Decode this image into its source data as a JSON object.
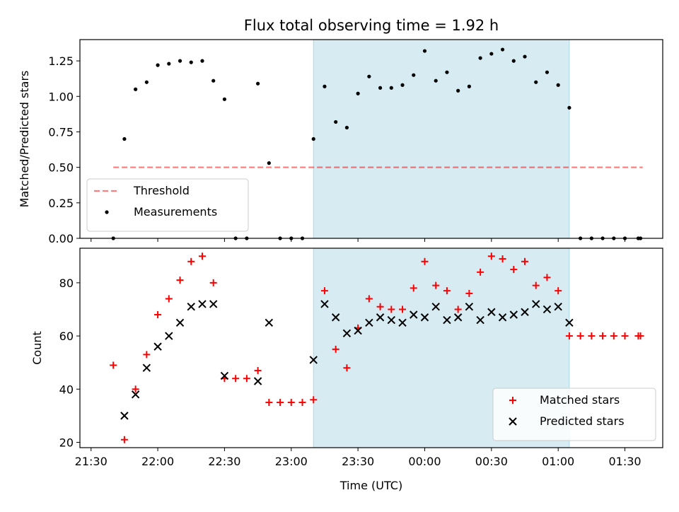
{
  "title": "Flux total observing time = 1.92 h",
  "xlabel": "Time (UTC)",
  "x_ticks": [
    "21:30",
    "22:00",
    "22:30",
    "23:00",
    "23:30",
    "00:00",
    "00:30",
    "01:00",
    "01:30"
  ],
  "colors": {
    "highlight": "#add8e6",
    "threshold": "#ff0000",
    "measurement": "#000000",
    "matched": "#ff0000",
    "predicted": "#000000"
  },
  "chart_data": [
    {
      "type": "scatter",
      "ylabel": "Matched/Predicted stars",
      "ylim": [
        0,
        1.4
      ],
      "xlim_hours": [
        "21:25",
        "01:47"
      ],
      "y_ticks": [
        "0.00",
        "0.25",
        "0.50",
        "0.75",
        "1.00",
        "1.25"
      ],
      "highlight_span": [
        "23:10",
        "01:05"
      ],
      "threshold": {
        "name": "Threshold",
        "value": 0.5,
        "x_range": [
          "21:40",
          "01:38"
        ]
      },
      "legend": {
        "location": "lower-left",
        "entries": [
          "Threshold",
          "Measurements"
        ]
      },
      "series": [
        {
          "name": "Measurements",
          "points": [
            [
              "21:40",
              0.0
            ],
            [
              "21:45",
              0.7
            ],
            [
              "21:50",
              1.05
            ],
            [
              "21:55",
              1.1
            ],
            [
              "22:00",
              1.22
            ],
            [
              "22:05",
              1.23
            ],
            [
              "22:10",
              1.25
            ],
            [
              "22:15",
              1.24
            ],
            [
              "22:20",
              1.25
            ],
            [
              "22:25",
              1.11
            ],
            [
              "22:30",
              0.98
            ],
            [
              "22:35",
              0.0
            ],
            [
              "22:40",
              0.0
            ],
            [
              "22:45",
              1.09
            ],
            [
              "22:50",
              0.53
            ],
            [
              "22:55",
              0.0
            ],
            [
              "23:00",
              0.0
            ],
            [
              "23:05",
              0.0
            ],
            [
              "23:10",
              0.7
            ],
            [
              "23:15",
              1.07
            ],
            [
              "23:20",
              0.82
            ],
            [
              "23:25",
              0.78
            ],
            [
              "23:30",
              1.02
            ],
            [
              "23:35",
              1.14
            ],
            [
              "23:40",
              1.06
            ],
            [
              "23:45",
              1.06
            ],
            [
              "23:50",
              1.08
            ],
            [
              "23:55",
              1.15
            ],
            [
              "00:00",
              1.32
            ],
            [
              "00:05",
              1.11
            ],
            [
              "00:10",
              1.17
            ],
            [
              "00:15",
              1.04
            ],
            [
              "00:20",
              1.07
            ],
            [
              "00:25",
              1.27
            ],
            [
              "00:30",
              1.3
            ],
            [
              "00:35",
              1.33
            ],
            [
              "00:40",
              1.25
            ],
            [
              "00:45",
              1.28
            ],
            [
              "00:50",
              1.1
            ],
            [
              "00:55",
              1.17
            ],
            [
              "01:00",
              1.08
            ],
            [
              "01:05",
              0.92
            ],
            [
              "01:10",
              0.0
            ],
            [
              "01:15",
              0.0
            ],
            [
              "01:20",
              0.0
            ],
            [
              "01:25",
              0.0
            ],
            [
              "01:30",
              0.0
            ],
            [
              "01:36",
              0.0
            ],
            [
              "01:37",
              0.0
            ]
          ]
        }
      ]
    },
    {
      "type": "scatter",
      "ylabel": "Count",
      "ylim": [
        18,
        93
      ],
      "xlim_hours": [
        "21:25",
        "01:47"
      ],
      "y_ticks": [
        "20",
        "40",
        "60",
        "80"
      ],
      "highlight_span": [
        "23:10",
        "01:05"
      ],
      "legend": {
        "location": "lower-right",
        "entries": [
          "Matched stars",
          "Predicted stars"
        ]
      },
      "series": [
        {
          "name": "Matched stars",
          "marker": "plus",
          "points": [
            [
              "21:40",
              49
            ],
            [
              "21:45",
              21
            ],
            [
              "21:50",
              40
            ],
            [
              "21:55",
              53
            ],
            [
              "22:00",
              68
            ],
            [
              "22:05",
              74
            ],
            [
              "22:10",
              81
            ],
            [
              "22:15",
              88
            ],
            [
              "22:20",
              90
            ],
            [
              "22:25",
              80
            ],
            [
              "22:30",
              44
            ],
            [
              "22:35",
              44
            ],
            [
              "22:40",
              44
            ],
            [
              "22:45",
              47
            ],
            [
              "22:50",
              35
            ],
            [
              "22:55",
              35
            ],
            [
              "23:00",
              35
            ],
            [
              "23:05",
              35
            ],
            [
              "23:10",
              36
            ],
            [
              "23:15",
              77
            ],
            [
              "23:20",
              55
            ],
            [
              "23:25",
              48
            ],
            [
              "23:30",
              63
            ],
            [
              "23:35",
              74
            ],
            [
              "23:40",
              71
            ],
            [
              "23:45",
              70
            ],
            [
              "23:50",
              70
            ],
            [
              "23:55",
              78
            ],
            [
              "00:00",
              88
            ],
            [
              "00:05",
              79
            ],
            [
              "00:10",
              77
            ],
            [
              "00:15",
              70
            ],
            [
              "00:20",
              76
            ],
            [
              "00:25",
              84
            ],
            [
              "00:30",
              90
            ],
            [
              "00:35",
              89
            ],
            [
              "00:40",
              85
            ],
            [
              "00:45",
              88
            ],
            [
              "00:50",
              79
            ],
            [
              "00:55",
              82
            ],
            [
              "01:00",
              77
            ],
            [
              "01:05",
              60
            ],
            [
              "01:10",
              60
            ],
            [
              "01:15",
              60
            ],
            [
              "01:20",
              60
            ],
            [
              "01:25",
              60
            ],
            [
              "01:30",
              60
            ],
            [
              "01:36",
              60
            ],
            [
              "01:37",
              60
            ]
          ]
        },
        {
          "name": "Predicted stars",
          "marker": "x",
          "points": [
            [
              "21:45",
              30
            ],
            [
              "21:50",
              38
            ],
            [
              "21:55",
              48
            ],
            [
              "22:00",
              56
            ],
            [
              "22:05",
              60
            ],
            [
              "22:10",
              65
            ],
            [
              "22:15",
              71
            ],
            [
              "22:20",
              72
            ],
            [
              "22:25",
              72
            ],
            [
              "22:30",
              45
            ],
            [
              "22:45",
              43
            ],
            [
              "22:50",
              65
            ],
            [
              "23:10",
              51
            ],
            [
              "23:15",
              72
            ],
            [
              "23:20",
              67
            ],
            [
              "23:25",
              61
            ],
            [
              "23:30",
              62
            ],
            [
              "23:35",
              65
            ],
            [
              "23:40",
              67
            ],
            [
              "23:45",
              66
            ],
            [
              "23:50",
              65
            ],
            [
              "23:55",
              68
            ],
            [
              "00:00",
              67
            ],
            [
              "00:05",
              71
            ],
            [
              "00:10",
              66
            ],
            [
              "00:15",
              67
            ],
            [
              "00:20",
              71
            ],
            [
              "00:25",
              66
            ],
            [
              "00:30",
              69
            ],
            [
              "00:35",
              67
            ],
            [
              "00:40",
              68
            ],
            [
              "00:45",
              69
            ],
            [
              "00:50",
              72
            ],
            [
              "00:55",
              70
            ],
            [
              "01:00",
              71
            ],
            [
              "01:05",
              65
            ]
          ]
        }
      ]
    }
  ]
}
